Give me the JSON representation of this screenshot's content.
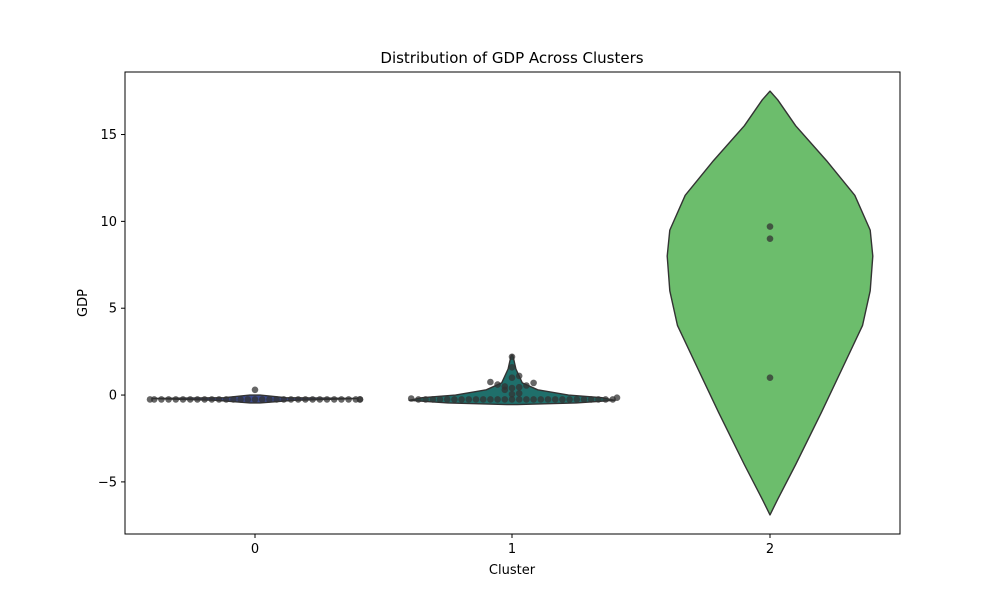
{
  "chart_data": {
    "type": "violin",
    "title": "Distribution of GDP Across Clusters",
    "xlabel": "Cluster",
    "ylabel": "GDP",
    "categories": [
      "0",
      "1",
      "2"
    ],
    "ylim": [
      -8.0,
      18.6
    ],
    "yticks": [
      -5,
      0,
      5,
      10,
      15
    ],
    "ytick_labels": [
      "−5",
      "0",
      "5",
      "10",
      "15"
    ],
    "grid": false,
    "violin_colors": [
      "#3b4a8c",
      "#1f6f6b",
      "#6cbd6c"
    ],
    "point_color": "#333333",
    "violins": [
      {
        "category": "0",
        "profile": [
          [
            -0.45,
            0.02
          ],
          [
            -0.3,
            0.15
          ],
          [
            -0.2,
            0.4
          ],
          [
            -0.15,
            0.12
          ],
          [
            0.0,
            0.02
          ]
        ]
      },
      {
        "category": "1",
        "profile": [
          [
            -0.55,
            0.02
          ],
          [
            -0.45,
            0.25
          ],
          [
            -0.3,
            0.4
          ],
          [
            -0.15,
            0.35
          ],
          [
            0.0,
            0.22
          ],
          [
            0.3,
            0.1
          ],
          [
            0.7,
            0.04
          ],
          [
            1.5,
            0.015
          ],
          [
            2.3,
            0.003
          ]
        ]
      },
      {
        "category": "2",
        "profile": [
          [
            -6.9,
            0.0
          ],
          [
            -6.0,
            0.03
          ],
          [
            -4.0,
            0.1
          ],
          [
            -1.0,
            0.2
          ],
          [
            1.5,
            0.28
          ],
          [
            4.0,
            0.36
          ],
          [
            6.0,
            0.39
          ],
          [
            8.0,
            0.4
          ],
          [
            9.5,
            0.39
          ],
          [
            11.5,
            0.33
          ],
          [
            13.5,
            0.22
          ],
          [
            15.5,
            0.1
          ],
          [
            17.0,
            0.03
          ],
          [
            17.5,
            0.0
          ]
        ]
      }
    ],
    "points": [
      {
        "category": "0",
        "values": [
          -0.25,
          -0.25,
          -0.25,
          -0.25,
          -0.25,
          -0.25,
          -0.25,
          -0.25,
          -0.25,
          -0.25,
          -0.25,
          -0.25,
          -0.25,
          -0.25,
          -0.25,
          -0.25,
          -0.25,
          -0.25,
          -0.25,
          -0.25,
          -0.25,
          -0.25,
          -0.25,
          -0.25,
          -0.25,
          -0.25,
          -0.25,
          -0.25,
          -0.25,
          -0.25,
          -0.25,
          -0.25,
          0.3
        ]
      },
      {
        "category": "1",
        "values": [
          -0.25,
          -0.25,
          -0.25,
          -0.25,
          -0.25,
          -0.25,
          -0.25,
          -0.25,
          -0.25,
          -0.25,
          -0.25,
          -0.25,
          -0.25,
          -0.25,
          -0.25,
          -0.25,
          -0.25,
          -0.25,
          -0.25,
          -0.25,
          -0.25,
          -0.25,
          -0.25,
          -0.25,
          -0.25,
          -0.25,
          -0.25,
          -0.25,
          -0.2,
          -0.15,
          0.05,
          0.1,
          0.3,
          0.4,
          0.45,
          0.5,
          0.55,
          0.6,
          0.7,
          0.75,
          1.0,
          1.1,
          1.6,
          2.2
        ]
      },
      {
        "category": "2",
        "values": [
          1.0,
          9.0,
          9.7
        ]
      }
    ]
  }
}
